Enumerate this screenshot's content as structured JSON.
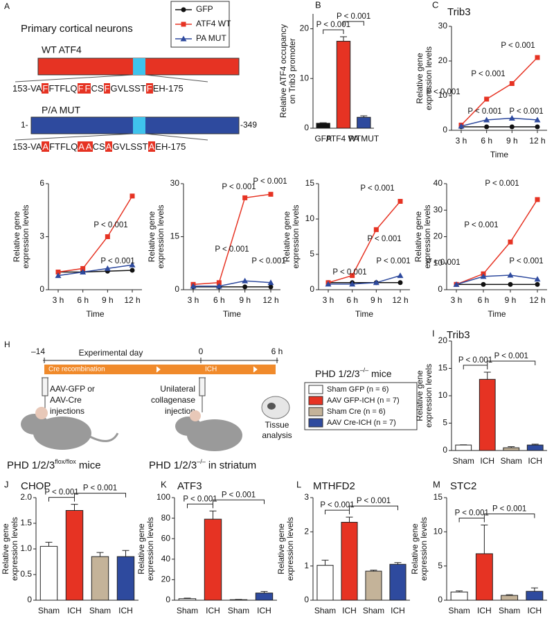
{
  "chart_data": [
    {
      "type": "bar",
      "label": "B",
      "ylabel": [
        "Relative ATF4 occupancy",
        "on Trib3 promoter"
      ],
      "categories": [
        "GFP",
        "ATF4 WT",
        "PA MUT"
      ],
      "values": [
        1,
        17.5,
        2.2
      ],
      "errors": [
        0.1,
        0.9,
        0.3
      ],
      "colors": [
        "#111111",
        "#e63323",
        "#2e4a9e"
      ],
      "ylim": [
        0,
        23
      ],
      "yticks": [
        0,
        10,
        20
      ],
      "annotations": [
        "P < 0.001",
        "P < 0.001"
      ]
    },
    {
      "type": "line",
      "label": "C",
      "title": "Trib3",
      "ylabel": [
        "Relative gene",
        "expression levels"
      ],
      "xlabel": "Time",
      "categories": [
        "3 h",
        "6 h",
        "9 h",
        "12 h"
      ],
      "series": [
        {
          "name": "GFP",
          "color": "#111111",
          "marker": "circle",
          "values": [
            1,
            1,
            1,
            1
          ]
        },
        {
          "name": "ATF4 WT",
          "color": "#e63323",
          "marker": "square",
          "values": [
            1.5,
            9,
            13.5,
            21
          ]
        },
        {
          "name": "PA MUT",
          "color": "#2e4a9e",
          "marker": "triangle",
          "values": [
            1.2,
            3,
            3.5,
            3
          ]
        }
      ],
      "ylim": [
        0,
        30
      ],
      "yticks": [
        0,
        10,
        20,
        30
      ],
      "annotations": [
        "P < 0.001",
        "P < 0.001",
        "P < 0.001",
        "P < 0.001",
        "P < 0.001"
      ]
    },
    {
      "type": "line",
      "ylabel": [
        "Relative gene",
        "expression levels"
      ],
      "xlabel": "Time",
      "categories": [
        "3 h",
        "6 h",
        "9 h",
        "12 h"
      ],
      "series": [
        {
          "color": "#111111",
          "marker": "circle",
          "values": [
            1,
            1,
            1.05,
            1.1
          ]
        },
        {
          "color": "#e63323",
          "marker": "square",
          "values": [
            1,
            1.2,
            3,
            5.3
          ]
        },
        {
          "color": "#2e4a9e",
          "marker": "triangle",
          "values": [
            0.8,
            1,
            1.2,
            1.4
          ]
        }
      ],
      "ylim": [
        0,
        6
      ],
      "yticks": [
        0,
        3,
        6
      ],
      "annotations": [
        "P < 0.001",
        "P < 0.001"
      ]
    },
    {
      "type": "line",
      "ylabel": [
        "Relative gene",
        "expression levels"
      ],
      "xlabel": "Time",
      "categories": [
        "3 h",
        "6 h",
        "9 h",
        "12 h"
      ],
      "series": [
        {
          "color": "#111111",
          "marker": "circle",
          "values": [
            0.8,
            0.8,
            0.8,
            0.8
          ]
        },
        {
          "color": "#e63323",
          "marker": "square",
          "values": [
            1.5,
            2,
            26,
            27
          ]
        },
        {
          "color": "#2e4a9e",
          "marker": "triangle",
          "values": [
            1,
            1,
            2.5,
            2
          ]
        }
      ],
      "ylim": [
        0,
        30
      ],
      "yticks": [
        0,
        15,
        30
      ],
      "annotations": [
        "P < 0.001",
        "P < 0.001",
        "P < 0.001",
        "P < 0.001"
      ]
    },
    {
      "type": "line",
      "ylabel": [
        "Relative gene",
        "expression levels"
      ],
      "xlabel": "Time",
      "categories": [
        "3 h",
        "6 h",
        "9 h",
        "12 h"
      ],
      "series": [
        {
          "color": "#111111",
          "marker": "circle",
          "values": [
            1,
            1,
            1,
            1
          ]
        },
        {
          "color": "#e63323",
          "marker": "square",
          "values": [
            1,
            2,
            8.5,
            12.5
          ]
        },
        {
          "color": "#2e4a9e",
          "marker": "triangle",
          "values": [
            0.8,
            0.8,
            1,
            2
          ]
        }
      ],
      "ylim": [
        0,
        15
      ],
      "yticks": [
        0,
        5,
        10,
        15
      ],
      "annotations": [
        "P < 0.001",
        "P < 0.001",
        "P < 0.001",
        "P < 0.001"
      ]
    },
    {
      "type": "line",
      "ylabel": [
        "Relative gene",
        "expression levels"
      ],
      "xlabel": "Time",
      "categories": [
        "3 h",
        "6 h",
        "9 h",
        "12 h"
      ],
      "series": [
        {
          "color": "#111111",
          "marker": "circle",
          "values": [
            2,
            2,
            2,
            2
          ]
        },
        {
          "color": "#e63323",
          "marker": "square",
          "values": [
            2,
            6,
            18,
            34
          ]
        },
        {
          "color": "#2e4a9e",
          "marker": "triangle",
          "values": [
            2,
            5,
            5.5,
            4
          ]
        }
      ],
      "ylim": [
        0,
        40
      ],
      "yticks": [
        0,
        10,
        20,
        30,
        40
      ],
      "annotations": [
        "P < 0.001",
        "P < 0.001",
        "P < 0.001",
        "P < 0.001"
      ]
    },
    {
      "type": "bar",
      "label": "I",
      "title": "Trib3",
      "ylabel": [
        "Relative gene",
        "expression levels"
      ],
      "categories": [
        "Sham",
        "ICH",
        "Sham",
        "ICH"
      ],
      "values": [
        1,
        13,
        0.5,
        1
      ],
      "errors": [
        0.05,
        1.3,
        0.2,
        0.15
      ],
      "colors": [
        "#ffffff",
        "#e63323",
        "#c4b399",
        "#2e4a9e"
      ],
      "ylim": [
        0,
        20
      ],
      "yticks": [
        0,
        5,
        10,
        15,
        20
      ],
      "annotations": [
        "P < 0.001",
        "P < 0.001"
      ]
    },
    {
      "type": "bar",
      "label": "J",
      "title": "CHOP",
      "ylabel": [
        "Relative gene",
        "expression levels"
      ],
      "categories": [
        "Sham",
        "ICH",
        "Sham",
        "ICH"
      ],
      "values": [
        1.05,
        1.75,
        0.85,
        0.85
      ],
      "errors": [
        0.08,
        0.12,
        0.08,
        0.12
      ],
      "colors": [
        "#ffffff",
        "#e63323",
        "#c4b399",
        "#2e4a9e"
      ],
      "ylim": [
        0,
        2
      ],
      "yticks": [
        0,
        0.5,
        {
          "value": 1,
          "label": "1.0"
        },
        1.5,
        {
          "value": 2,
          "label": "2.0"
        }
      ],
      "annotations": [
        "P < 0.001",
        "P < 0.001"
      ]
    },
    {
      "type": "bar",
      "label": "K",
      "title": "ATF3",
      "ylabel": [
        "Relative gene",
        "expression levels"
      ],
      "categories": [
        "Sham",
        "ICH",
        "Sham",
        "ICH"
      ],
      "values": [
        1.5,
        79,
        0.5,
        7
      ],
      "errors": [
        0.5,
        8,
        0.3,
        1.5
      ],
      "colors": [
        "#ffffff",
        "#e63323",
        "#c4b399",
        "#2e4a9e"
      ],
      "ylim": [
        0,
        100
      ],
      "yticks": [
        0,
        20,
        40,
        60,
        80,
        100
      ],
      "annotations": [
        "P < 0.001",
        "P < 0.001"
      ]
    },
    {
      "type": "bar",
      "label": "L",
      "title": "MTHFD2",
      "ylabel": [
        "Relative gene",
        "expression levels"
      ],
      "categories": [
        "Sham",
        "ICH",
        "Sham",
        "ICH"
      ],
      "values": [
        1.02,
        2.28,
        0.85,
        1.05
      ],
      "errors": [
        0.15,
        0.15,
        0.03,
        0.05
      ],
      "colors": [
        "#ffffff",
        "#e63323",
        "#c4b399",
        "#2e4a9e"
      ],
      "ylim": [
        0,
        3
      ],
      "yticks": [
        0,
        1,
        2,
        3
      ],
      "annotations": [
        "P < 0.001",
        "P < 0.001"
      ]
    },
    {
      "type": "bar",
      "label": "M",
      "title": "STC2",
      "ylabel": [
        "Relative gene",
        "expression levels"
      ],
      "categories": [
        "Sham",
        "ICH",
        "Sham",
        "ICH"
      ],
      "values": [
        1.2,
        6.8,
        0.7,
        1.3
      ],
      "errors": [
        0.15,
        4.2,
        0.1,
        0.5
      ],
      "colors": [
        "#ffffff",
        "#e63323",
        "#c4b399",
        "#2e4a9e"
      ],
      "ylim": [
        0,
        15
      ],
      "yticks": [
        0,
        5,
        10,
        15
      ],
      "annotations": [
        "P < 0.001",
        "P < 0.001"
      ]
    }
  ],
  "panel_a": {
    "label": "A",
    "title": "Primary cortical neurons",
    "wt_label": "WT ATF4",
    "wt_seq": [
      "153-VA",
      "F",
      "FTFLQ",
      "F",
      "F",
      "CS",
      "F",
      "GVLSST",
      "F",
      "EH-175"
    ],
    "mut_label": "P/A MUT",
    "mut_start": "1-",
    "mut_end": "-349",
    "mut_seq": [
      "153-VA",
      "A",
      "FTFLQ",
      "A",
      "A",
      "CS",
      "A",
      "GVLSST",
      "A",
      "EH-175"
    ],
    "highlight": [
      1,
      3,
      4,
      6,
      8
    ]
  },
  "panel_h": {
    "label": "H",
    "day_start": "–14",
    "axis_title": "Experimental day",
    "day_zero": "0",
    "day_end": "6 h",
    "bar1": "Cre recombination",
    "bar2": "ICH",
    "step1": [
      "AAV-GFP or",
      "AAV-Cre",
      "injections"
    ],
    "step2": [
      "Unilateral",
      "collagenase",
      "injection"
    ],
    "step3": [
      "Tissue",
      "analysis"
    ],
    "mouse1": [
      "PHD 1/2/3",
      "flox/flox",
      " mice"
    ],
    "mouse2": [
      "PHD 1/2/3",
      "–/–",
      " in striatum"
    ],
    "legend_title": [
      "PHD 1/2/3",
      "–/–",
      " mice"
    ],
    "legend_items": [
      "Sham GFP (n = 6)",
      "AAV GFP-ICH (n = 7)",
      "Sham Cre (n = 6)",
      "AAV Cre-ICH (n = 7)"
    ]
  }
}
